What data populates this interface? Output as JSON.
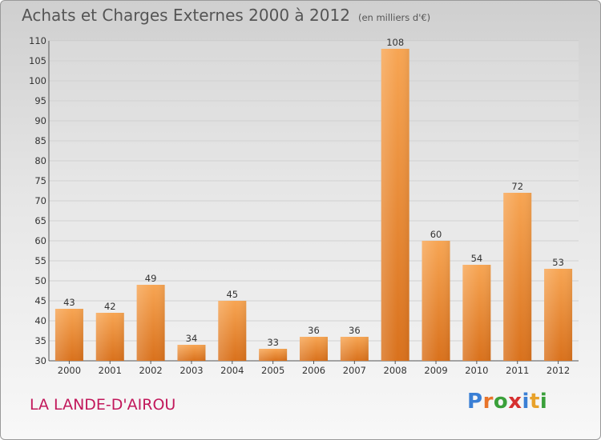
{
  "chart_data": {
    "type": "bar",
    "title": "Achats et Charges Externes 2000 à 2012",
    "subtitle": "(en milliers d'€)",
    "categories": [
      "2000",
      "2001",
      "2002",
      "2003",
      "2004",
      "2005",
      "2006",
      "2007",
      "2008",
      "2009",
      "2010",
      "2011",
      "2012"
    ],
    "values": [
      43,
      42,
      49,
      34,
      45,
      33,
      36,
      36,
      108,
      60,
      54,
      72,
      53
    ],
    "ylim": [
      30,
      110
    ],
    "yticks": [
      30,
      35,
      40,
      45,
      50,
      55,
      60,
      65,
      70,
      75,
      80,
      85,
      90,
      95,
      100,
      105,
      110
    ],
    "xlabel": "",
    "ylabel": "",
    "grid": true,
    "bar_color": "#f0923a"
  },
  "footer": {
    "town": "LA LANDE-D'AIROU",
    "logo_letters": [
      "P",
      "r",
      "o",
      "x",
      "i",
      "t",
      "i"
    ],
    "logo_colors": [
      "#3a7fd5",
      "#e8742a",
      "#3aa03a",
      "#d63030",
      "#3a7fd5",
      "#e8a22a",
      "#3aa03a"
    ]
  }
}
